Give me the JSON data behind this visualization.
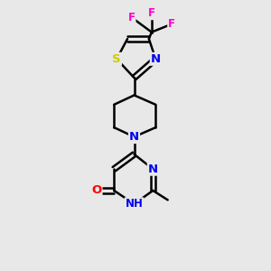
{
  "background_color": "#e8e8e8",
  "bond_color": "#000000",
  "atom_colors": {
    "N": "#0000ee",
    "O": "#ff0000",
    "S": "#cccc00",
    "F": "#ff00cc",
    "C": "#000000",
    "H": "#000000"
  },
  "figsize": [
    3.0,
    3.0
  ],
  "dpi": 100,
  "xlim": [
    0,
    10
  ],
  "ylim": [
    0,
    10
  ]
}
